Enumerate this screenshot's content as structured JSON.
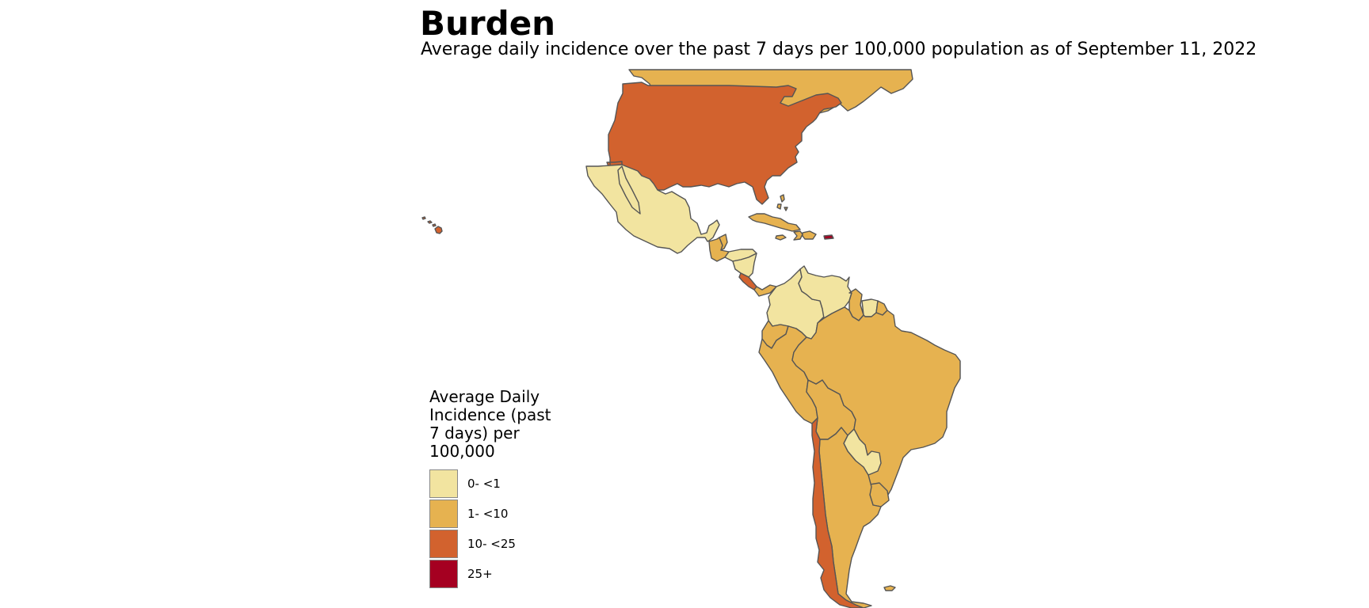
{
  "title": "Burden",
  "subtitle": "Average daily incidence over the past 7 days per 100,000 population as of September 11, 2022",
  "legend": {
    "title": "Average Daily Incidence (past 7 days) per 100,000",
    "items": [
      {
        "label": "0- <1",
        "color": "#f2e4a0"
      },
      {
        "label": "1- <10",
        "color": "#e6b250"
      },
      {
        "label": "10- <25",
        "color": "#d2622e"
      },
      {
        "label": "25+",
        "color": "#a50021"
      }
    ]
  },
  "regions": [
    {
      "name": "Canada",
      "category": "1- <10"
    },
    {
      "name": "United States",
      "category": "10- <25"
    },
    {
      "name": "Hawaii",
      "category": "10- <25"
    },
    {
      "name": "Mexico",
      "category": "0- <1"
    },
    {
      "name": "Guatemala",
      "category": "1- <10"
    },
    {
      "name": "Belize",
      "category": "1- <10"
    },
    {
      "name": "Honduras",
      "category": "0- <1"
    },
    {
      "name": "Nicaragua",
      "category": "0- <1"
    },
    {
      "name": "Costa Rica",
      "category": "10- <25"
    },
    {
      "name": "Panama",
      "category": "1- <10"
    },
    {
      "name": "Cuba",
      "category": "1- <10"
    },
    {
      "name": "Bahamas",
      "category": "1- <10"
    },
    {
      "name": "Jamaica",
      "category": "1- <10"
    },
    {
      "name": "Haiti",
      "category": "1- <10"
    },
    {
      "name": "Dominican Republic",
      "category": "1- <10"
    },
    {
      "name": "Puerto Rico",
      "category": "25+"
    },
    {
      "name": "Colombia",
      "category": "0- <1"
    },
    {
      "name": "Venezuela",
      "category": "0- <1"
    },
    {
      "name": "Guyana",
      "category": "1- <10"
    },
    {
      "name": "Suriname",
      "category": "0- <1"
    },
    {
      "name": "French Guiana",
      "category": "1- <10"
    },
    {
      "name": "Ecuador",
      "category": "1- <10"
    },
    {
      "name": "Peru",
      "category": "1- <10"
    },
    {
      "name": "Brazil",
      "category": "1- <10"
    },
    {
      "name": "Bolivia",
      "category": "1- <10"
    },
    {
      "name": "Paraguay",
      "category": "0- <1"
    },
    {
      "name": "Chile",
      "category": "10- <25"
    },
    {
      "name": "Argentina",
      "category": "1- <10"
    },
    {
      "name": "Uruguay",
      "category": "1- <10"
    },
    {
      "name": "Falkland Islands",
      "category": "1- <10"
    }
  ]
}
